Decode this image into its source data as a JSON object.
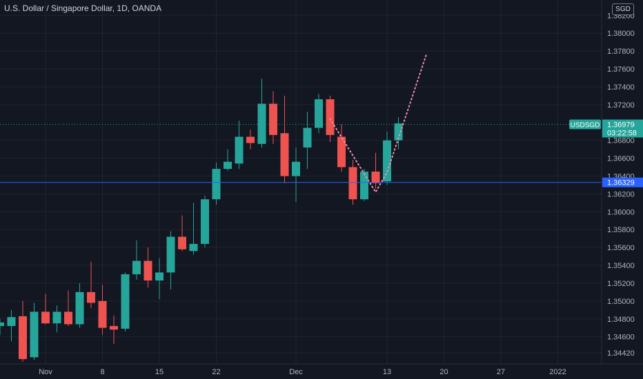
{
  "header": {
    "title": "U.S. Dollar / Singapore Dollar, 1D, OANDA",
    "currency": "SGD"
  },
  "price_tag": {
    "symbol": "USDSGD",
    "price": "1.36979",
    "countdown": "03:22:58"
  },
  "line_label": "1.36329",
  "colors": {
    "up": "#26a69a",
    "down": "#ef5350",
    "background": "#131722",
    "grid": "#1f2430",
    "hline": "#2962ff",
    "projection": "#f48fb1"
  },
  "chart_data": {
    "type": "candlestick",
    "title": "U.S. Dollar / Singapore Dollar, 1D, OANDA",
    "ylim": [
      1.3432,
      1.384
    ],
    "y_ticks": [
      "1.38200",
      "1.38000",
      "1.37800",
      "1.37600",
      "1.37400",
      "1.37200",
      "1.36800",
      "1.36600",
      "1.36400",
      "1.36200",
      "1.36000",
      "1.35800",
      "1.35600",
      "1.35400",
      "1.35200",
      "1.35000",
      "1.34800",
      "1.34600",
      "1.34420"
    ],
    "x_ticks": [
      {
        "index": 3,
        "label": "Nov"
      },
      {
        "index": 8,
        "label": "8"
      },
      {
        "index": 13,
        "label": "15"
      },
      {
        "index": 18,
        "label": "22"
      },
      {
        "index": 25,
        "label": "Dec"
      },
      {
        "index": 33,
        "label": "13"
      },
      {
        "index": 38,
        "label": "20"
      },
      {
        "index": 43,
        "label": "27"
      },
      {
        "index": 48,
        "label": "2022"
      }
    ],
    "candles": [
      {
        "i": -1,
        "o": 1.3472,
        "h": 1.348,
        "l": 1.3462,
        "c": 1.3476
      },
      {
        "i": 0,
        "o": 1.3472,
        "h": 1.349,
        "l": 1.3455,
        "c": 1.3482
      },
      {
        "i": 1,
        "o": 1.3483,
        "h": 1.35,
        "l": 1.3432,
        "c": 1.3435
      },
      {
        "i": 2,
        "o": 1.3437,
        "h": 1.3498,
        "l": 1.3434,
        "c": 1.3488
      },
      {
        "i": 3,
        "o": 1.3488,
        "h": 1.3508,
        "l": 1.3474,
        "c": 1.3475
      },
      {
        "i": 4,
        "o": 1.3475,
        "h": 1.3495,
        "l": 1.3465,
        "c": 1.3488
      },
      {
        "i": 5,
        "o": 1.3488,
        "h": 1.3512,
        "l": 1.3472,
        "c": 1.3474
      },
      {
        "i": 6,
        "o": 1.3474,
        "h": 1.352,
        "l": 1.347,
        "c": 1.351
      },
      {
        "i": 7,
        "o": 1.351,
        "h": 1.3544,
        "l": 1.3492,
        "c": 1.3498
      },
      {
        "i": 8,
        "o": 1.35,
        "h": 1.3518,
        "l": 1.3462,
        "c": 1.347
      },
      {
        "i": 9,
        "o": 1.3472,
        "h": 1.3484,
        "l": 1.3452,
        "c": 1.3468
      },
      {
        "i": 10,
        "o": 1.3469,
        "h": 1.3532,
        "l": 1.3466,
        "c": 1.353
      },
      {
        "i": 11,
        "o": 1.353,
        "h": 1.3568,
        "l": 1.3524,
        "c": 1.3545
      },
      {
        "i": 12,
        "o": 1.3545,
        "h": 1.356,
        "l": 1.3515,
        "c": 1.3523
      },
      {
        "i": 13,
        "o": 1.3523,
        "h": 1.3548,
        "l": 1.3502,
        "c": 1.3532
      },
      {
        "i": 14,
        "o": 1.3532,
        "h": 1.3578,
        "l": 1.3513,
        "c": 1.3572
      },
      {
        "i": 15,
        "o": 1.3572,
        "h": 1.3596,
        "l": 1.3556,
        "c": 1.3558
      },
      {
        "i": 16,
        "o": 1.3556,
        "h": 1.361,
        "l": 1.3552,
        "c": 1.3564
      },
      {
        "i": 17,
        "o": 1.3564,
        "h": 1.3618,
        "l": 1.356,
        "c": 1.3614
      },
      {
        "i": 18,
        "o": 1.3614,
        "h": 1.3655,
        "l": 1.3608,
        "c": 1.3648
      },
      {
        "i": 19,
        "o": 1.3648,
        "h": 1.367,
        "l": 1.3646,
        "c": 1.3656
      },
      {
        "i": 20,
        "o": 1.3654,
        "h": 1.3702,
        "l": 1.3648,
        "c": 1.3684
      },
      {
        "i": 21,
        "o": 1.3684,
        "h": 1.3692,
        "l": 1.367,
        "c": 1.3677
      },
      {
        "i": 22,
        "o": 1.3676,
        "h": 1.3749,
        "l": 1.3672,
        "c": 1.3721
      },
      {
        "i": 23,
        "o": 1.3721,
        "h": 1.3735,
        "l": 1.3676,
        "c": 1.3686
      },
      {
        "i": 24,
        "o": 1.3688,
        "h": 1.373,
        "l": 1.3632,
        "c": 1.364
      },
      {
        "i": 25,
        "o": 1.364,
        "h": 1.3672,
        "l": 1.3611,
        "c": 1.3656
      },
      {
        "i": 26,
        "o": 1.3672,
        "h": 1.3712,
        "l": 1.3648,
        "c": 1.3694
      },
      {
        "i": 27,
        "o": 1.3694,
        "h": 1.3732,
        "l": 1.3688,
        "c": 1.3726
      },
      {
        "i": 28,
        "o": 1.3726,
        "h": 1.373,
        "l": 1.3678,
        "c": 1.3686
      },
      {
        "i": 29,
        "o": 1.3684,
        "h": 1.3698,
        "l": 1.3645,
        "c": 1.365
      },
      {
        "i": 30,
        "o": 1.365,
        "h": 1.3658,
        "l": 1.3608,
        "c": 1.3614
      },
      {
        "i": 31,
        "o": 1.3614,
        "h": 1.3648,
        "l": 1.3612,
        "c": 1.3645
      },
      {
        "i": 32,
        "o": 1.3645,
        "h": 1.3666,
        "l": 1.3626,
        "c": 1.3632
      },
      {
        "i": 33,
        "o": 1.3634,
        "h": 1.369,
        "l": 1.363,
        "c": 1.368
      },
      {
        "i": 34,
        "o": 1.368,
        "h": 1.3706,
        "l": 1.367,
        "c": 1.3699
      }
    ],
    "horizontal_line": 1.36329,
    "dotted_line": 1.36979,
    "projection_path": [
      {
        "i": 28,
        "y": 1.3704
      },
      {
        "i": 32,
        "y": 1.3622
      },
      {
        "i": 33,
        "y": 1.3644
      },
      {
        "i": 36.5,
        "y": 1.3778
      }
    ]
  }
}
